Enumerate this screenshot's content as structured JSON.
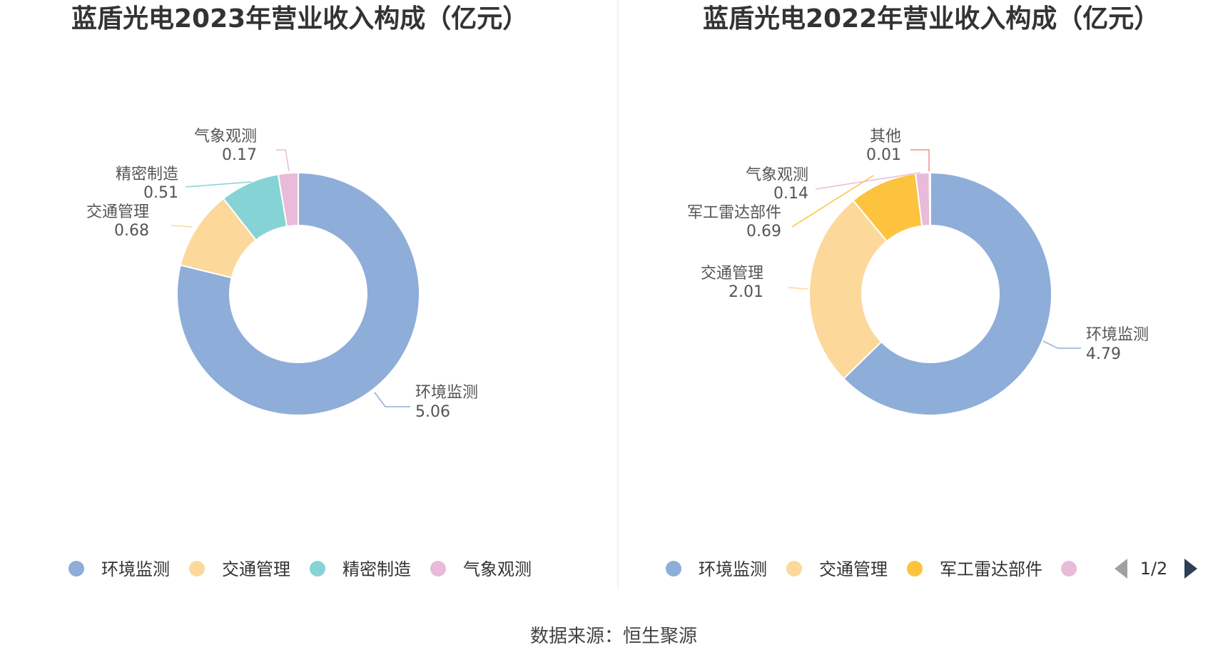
{
  "chart_data": [
    {
      "type": "pie",
      "title": "蓝盾光电2023年营业收入构成（亿元）",
      "categories": [
        "环境监测",
        "交通管理",
        "精密制造",
        "气象观测"
      ],
      "values": [
        5.06,
        0.68,
        0.51,
        0.17
      ],
      "colors": [
        "#8eadd9",
        "#fdd89b",
        "#86d3d6",
        "#e7bbd9"
      ],
      "legend": [
        "环境监测",
        "交通管理",
        "精密制造",
        "气象观测"
      ],
      "legend_position": "bottom"
    },
    {
      "type": "pie",
      "title": "蓝盾光电2022年营业收入构成（亿元）",
      "categories": [
        "环境监测",
        "交通管理",
        "军工雷达部件",
        "气象观测",
        "其他"
      ],
      "values": [
        4.79,
        2.01,
        0.69,
        0.14,
        0.01
      ],
      "colors": [
        "#8eadd9",
        "#fdd89b",
        "#fdc33e",
        "#e7bbd9",
        "#ee8f8a"
      ],
      "legend": [
        "环境监测",
        "交通管理",
        "军工雷达部件",
        ""
      ],
      "legend_position": "bottom",
      "pager": "1/2"
    }
  ],
  "source": "数据来源：恒生聚源"
}
